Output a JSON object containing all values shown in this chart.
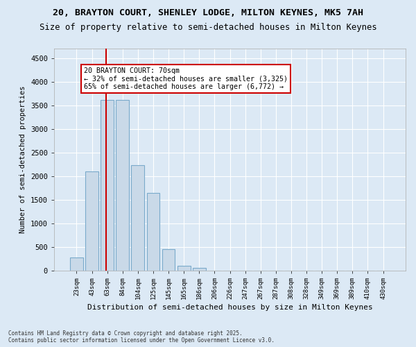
{
  "title_line1": "20, BRAYTON COURT, SHENLEY LODGE, MILTON KEYNES, MK5 7AH",
  "title_line2": "Size of property relative to semi-detached houses in Milton Keynes",
  "xlabel": "Distribution of semi-detached houses by size in Milton Keynes",
  "ylabel": "Number of semi-detached properties",
  "footnote": "Contains HM Land Registry data © Crown copyright and database right 2025.\nContains public sector information licensed under the Open Government Licence v3.0.",
  "bin_labels": [
    "23sqm",
    "43sqm",
    "63sqm",
    "84sqm",
    "104sqm",
    "125sqm",
    "145sqm",
    "165sqm",
    "186sqm",
    "206sqm",
    "226sqm",
    "247sqm",
    "267sqm",
    "287sqm",
    "308sqm",
    "328sqm",
    "349sqm",
    "369sqm",
    "389sqm",
    "410sqm",
    "430sqm"
  ],
  "bar_values": [
    280,
    2100,
    3620,
    3620,
    2230,
    1640,
    450,
    100,
    55,
    0,
    0,
    0,
    0,
    0,
    0,
    0,
    0,
    0,
    0,
    0,
    0
  ],
  "bar_color": "#c9d9e8",
  "bar_edgecolor": "#7aaacb",
  "vline_x_index": 2,
  "vline_color": "#cc0000",
  "annotation_text": "20 BRAYTON COURT: 70sqm\n← 32% of semi-detached houses are smaller (3,325)\n65% of semi-detached houses are larger (6,772) →",
  "annotation_box_color": "#ffffff",
  "annotation_box_edgecolor": "#cc0000",
  "ylim_max": 4700,
  "yticks": [
    0,
    500,
    1000,
    1500,
    2000,
    2500,
    3000,
    3500,
    4000,
    4500
  ],
  "background_color": "#dce9f5",
  "grid_color": "#ffffff"
}
